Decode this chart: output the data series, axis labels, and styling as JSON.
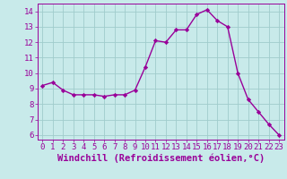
{
  "x": [
    0,
    1,
    2,
    3,
    4,
    5,
    6,
    7,
    8,
    9,
    10,
    11,
    12,
    13,
    14,
    15,
    16,
    17,
    18,
    19,
    20,
    21,
    22,
    23
  ],
  "y": [
    9.2,
    9.4,
    8.9,
    8.6,
    8.6,
    8.6,
    8.5,
    8.6,
    8.6,
    8.9,
    10.4,
    12.1,
    12.0,
    12.8,
    12.8,
    13.8,
    14.1,
    13.4,
    13.0,
    10.0,
    8.3,
    7.5,
    6.7,
    6.0
  ],
  "line_color": "#990099",
  "marker": "D",
  "marker_size": 2.2,
  "bg_color": "#c8eaea",
  "grid_color": "#a0cccc",
  "xlabel": "Windchill (Refroidissement éolien,°C)",
  "xlabel_fontsize": 7.5,
  "ylim": [
    5.7,
    14.5
  ],
  "xlim": [
    -0.5,
    23.5
  ],
  "yticks": [
    6,
    7,
    8,
    9,
    10,
    11,
    12,
    13,
    14
  ],
  "xticks": [
    0,
    1,
    2,
    3,
    4,
    5,
    6,
    7,
    8,
    9,
    10,
    11,
    12,
    13,
    14,
    15,
    16,
    17,
    18,
    19,
    20,
    21,
    22,
    23
  ],
  "tick_fontsize": 6.5,
  "line_width": 1.0
}
